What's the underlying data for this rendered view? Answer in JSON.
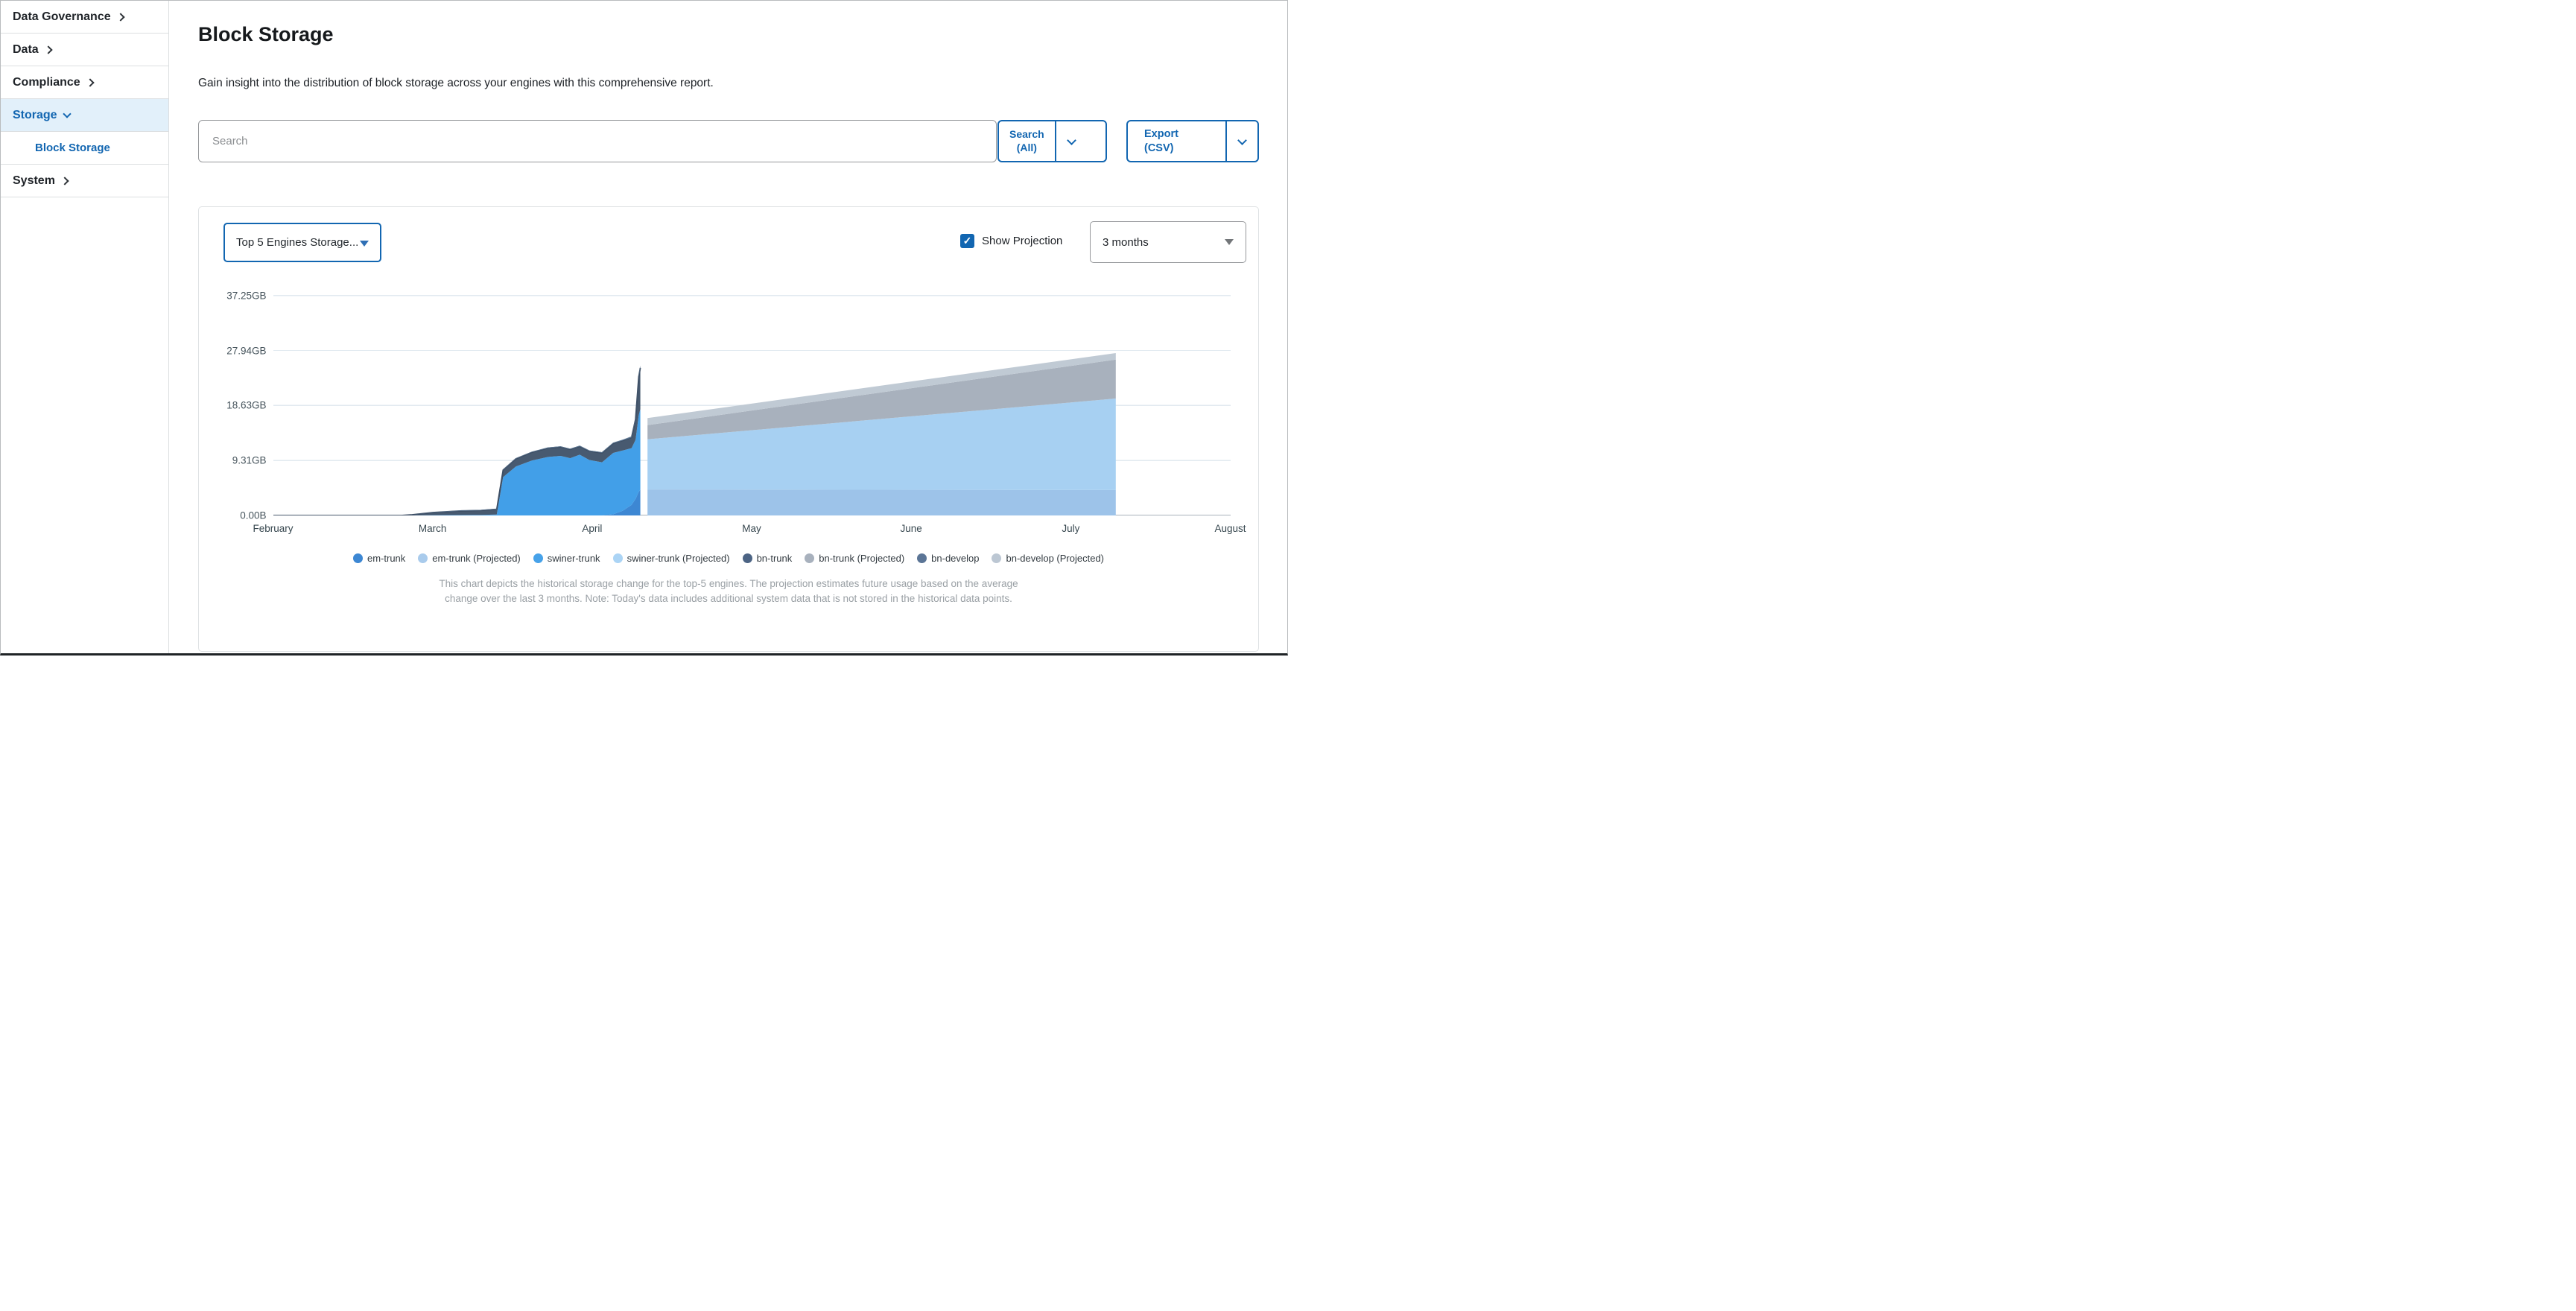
{
  "sidebar": {
    "items": [
      {
        "label": "Data Governance"
      },
      {
        "label": "Data"
      },
      {
        "label": "Compliance"
      },
      {
        "label": "Storage"
      },
      {
        "label": "System"
      }
    ],
    "sub_item_label": "Block Storage"
  },
  "header": {
    "title": "Block Storage",
    "description": "Gain insight into the distribution of block storage across your engines with this comprehensive report."
  },
  "toolbar": {
    "search_placeholder": "Search",
    "search_button_line1": "Search",
    "search_button_line2": "(All)",
    "export_button": "Export (CSV)"
  },
  "controls": {
    "metric_select": "Top 5 Engines Storage...",
    "show_projection": "Show Projection",
    "projection_checked": true,
    "check_glyph": "✓",
    "range_select": "3 months"
  },
  "chart_data": {
    "type": "area",
    "title": "Top 5 Engines Storage...",
    "unit": "GB",
    "grid": true,
    "legend_position": "bottom",
    "y_ticks": [
      {
        "label": "37.25GB",
        "value": 37.25
      },
      {
        "label": "27.94GB",
        "value": 27.94
      },
      {
        "label": "18.63GB",
        "value": 18.63
      },
      {
        "label": "9.31GB",
        "value": 9.31
      },
      {
        "label": "0.00B",
        "value": 0
      }
    ],
    "y_max": 40.1,
    "x_labels": [
      "February",
      "March",
      "April",
      "May",
      "June",
      "July",
      "August"
    ],
    "x_range_months": [
      0,
      6
    ],
    "today_month": 2.3,
    "projection_start_month": 2.345,
    "projection_end_month": 5.28,
    "historical_x_months": [
      0,
      0.4,
      0.8,
      0.87,
      1.0,
      1.18,
      1.3,
      1.4,
      1.44,
      1.52,
      1.62,
      1.72,
      1.8,
      1.86,
      1.92,
      1.98,
      2.06,
      2.13,
      2.19,
      2.245,
      2.27,
      2.29,
      2.3
    ],
    "series": [
      {
        "name": "em-trunk",
        "color": "#3D87D3",
        "chart_color": "#3D87D3",
        "values": [
          0,
          0,
          0,
          0,
          0,
          0,
          0,
          0,
          0,
          0,
          0,
          0,
          0,
          0,
          0,
          0,
          0,
          0.2,
          0.8,
          1.8,
          2.8,
          4.0,
          4.4
        ]
      },
      {
        "name": "swiner-trunk",
        "color": "#47A2E9",
        "chart_color": "#429FE8",
        "values": [
          0,
          0,
          0,
          0.02,
          0.05,
          0.08,
          0.1,
          0.15,
          6.5,
          8.3,
          9.3,
          9.9,
          10.1,
          9.7,
          10.3,
          9.4,
          9.0,
          10.4,
          10.2,
          9.6,
          10.0,
          13.0,
          13.6
        ]
      },
      {
        "name": "bn-trunk",
        "color": "#4C6484",
        "chart_color": "#485A70",
        "top_stroke": "#3A4B61",
        "values": [
          0,
          0,
          0,
          0.1,
          0.45,
          0.7,
          0.75,
          0.9,
          1.2,
          1.3,
          1.4,
          1.5,
          1.5,
          1.5,
          1.4,
          1.5,
          1.6,
          1.6,
          1.7,
          1.8,
          3.5,
          6.5,
          7.0
        ]
      },
      {
        "name": "bn-develop",
        "color": "#5B7596",
        "chart_color": "#5E7894",
        "values": [
          0,
          0,
          0,
          0.02,
          0.06,
          0.08,
          0.09,
          0.1,
          0.1,
          0.1,
          0.1,
          0.12,
          0.12,
          0.12,
          0.12,
          0.12,
          0.12,
          0.15,
          0.15,
          0.2,
          0.3,
          0.35,
          0.4
        ]
      }
    ],
    "projected_series": [
      {
        "name": "em-trunk (Projected)",
        "color": "#A9CBEC",
        "chart_color": "#9DC3E9",
        "start_value": 4.4,
        "end_value": 4.3
      },
      {
        "name": "swiner-trunk (Projected)",
        "color": "#ABD4F5",
        "chart_color": "#A7D0F2",
        "start_value": 8.5,
        "end_value": 15.5
      },
      {
        "name": "bn-trunk (Projected)",
        "color": "#A8B1BD",
        "chart_color": "#A8B1BD",
        "start_value": 2.4,
        "end_value": 6.6
      },
      {
        "name": "bn-develop (Projected)",
        "color": "#BCC7D3",
        "chart_color": "#C0CAD4",
        "start_value": 1.2,
        "end_value": 1.1
      }
    ],
    "legend": [
      {
        "label": "em-trunk",
        "color": "#3D87D3"
      },
      {
        "label": "em-trunk (Projected)",
        "color": "#A9CBEC"
      },
      {
        "label": "swiner-trunk",
        "color": "#47A2E9"
      },
      {
        "label": "swiner-trunk (Projected)",
        "color": "#ABD4F5"
      },
      {
        "label": "bn-trunk",
        "color": "#4C6484"
      },
      {
        "label": "bn-trunk (Projected)",
        "color": "#A8B1BD"
      },
      {
        "label": "bn-develop",
        "color": "#5B7596"
      },
      {
        "label": "bn-develop (Projected)",
        "color": "#BCC7D3"
      }
    ],
    "caption": "This chart depicts the historical storage change for the top-5 engines. The projection estimates future usage based on the average change over the last 3 months. Note: Today's data includes additional system data that is not stored in the historical data points."
  }
}
